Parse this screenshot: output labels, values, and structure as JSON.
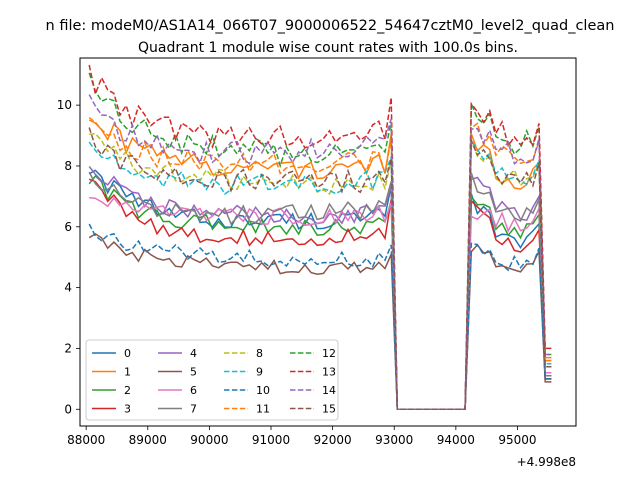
{
  "chart_data": {
    "type": "line",
    "suptitle": "n file: modeM0/AS1A14_066T07_9000006522_54647cztM0_level2_quad_clean",
    "title": "Quadrant 1 module wise count rates with 100.0s bins.",
    "xlabel": "",
    "ylabel": "",
    "x_offset_label": "+4.998e8",
    "xlim": [
      87900,
      95950
    ],
    "ylim": [
      -0.55,
      11.55
    ],
    "xticks": [
      88000,
      89000,
      90000,
      91000,
      92000,
      93000,
      94000,
      95000
    ],
    "yticks": [
      0,
      2,
      4,
      6,
      8,
      10
    ],
    "legend": {
      "placement": "lower-left",
      "columns": 4
    },
    "x_range": [
      88050,
      95550
    ],
    "gap": [
      93100,
      94200
    ],
    "series": [
      {
        "name": "0",
        "color": "#1f77b4",
        "dash": "solid",
        "start": 8.0,
        "level": 5.9,
        "end_level": 6.3,
        "late": 5.6,
        "drop": 1.0
      },
      {
        "name": "1",
        "color": "#ff7f0e",
        "dash": "solid",
        "start": 9.8,
        "level": 7.7,
        "end_level": 8.0,
        "late": 7.6,
        "drop": 1.7
      },
      {
        "name": "2",
        "color": "#2ca02c",
        "dash": "solid",
        "start": 7.6,
        "level": 5.9,
        "end_level": 6.0,
        "late": 5.9,
        "drop": 1.1
      },
      {
        "name": "3",
        "color": "#d62728",
        "dash": "solid",
        "start": 7.7,
        "level": 5.3,
        "end_level": 5.7,
        "late": 5.4,
        "drop": 1.0
      },
      {
        "name": "4",
        "color": "#9467bd",
        "dash": "solid",
        "start": 8.1,
        "level": 6.2,
        "end_level": 6.4,
        "late": 6.5,
        "drop": 1.1
      },
      {
        "name": "5",
        "color": "#8c564b",
        "dash": "solid",
        "start": 5.7,
        "level": 4.7,
        "end_level": 4.6,
        "late": 4.7,
        "drop": 0.9
      },
      {
        "name": "6",
        "color": "#e377c2",
        "dash": "solid",
        "start": 7.0,
        "level": 6.2,
        "end_level": 6.4,
        "late": 6.1,
        "drop": 1.2
      },
      {
        "name": "7",
        "color": "#7f7f7f",
        "dash": "solid",
        "start": 7.8,
        "level": 6.0,
        "end_level": 6.6,
        "late": 6.4,
        "drop": 1.1
      },
      {
        "name": "8",
        "color": "#bcbd22",
        "dash": "dashed",
        "start": 9.0,
        "level": 7.4,
        "end_level": 7.4,
        "late": 7.6,
        "drop": 1.6
      },
      {
        "name": "9",
        "color": "#17becf",
        "dash": "dashed",
        "start": 8.7,
        "level": 7.1,
        "end_level": 7.5,
        "late": 7.7,
        "drop": 1.5
      },
      {
        "name": "10",
        "color": "#1f77b4",
        "dash": "dashed",
        "start": 6.0,
        "level": 5.0,
        "end_level": 4.9,
        "late": 4.8,
        "drop": 1.0
      },
      {
        "name": "11",
        "color": "#ff7f0e",
        "dash": "dashed",
        "start": 9.4,
        "level": 7.8,
        "end_level": 8.1,
        "late": 8.3,
        "drop": 1.6
      },
      {
        "name": "12",
        "color": "#2ca02c",
        "dash": "dashed",
        "start": 10.8,
        "level": 8.5,
        "end_level": 8.3,
        "late": 8.8,
        "drop": 1.8
      },
      {
        "name": "13",
        "color": "#d62728",
        "dash": "dashed",
        "start": 11.0,
        "level": 8.7,
        "end_level": 9.1,
        "late": 8.9,
        "drop": 2.0
      },
      {
        "name": "14",
        "color": "#9467bd",
        "dash": "dashed",
        "start": 10.0,
        "level": 8.1,
        "end_level": 8.6,
        "late": 8.4,
        "drop": 1.8
      },
      {
        "name": "15",
        "color": "#8c564b",
        "dash": "dashed",
        "start": 8.9,
        "level": 7.4,
        "end_level": 7.5,
        "late": 7.6,
        "drop": 1.4
      }
    ]
  }
}
